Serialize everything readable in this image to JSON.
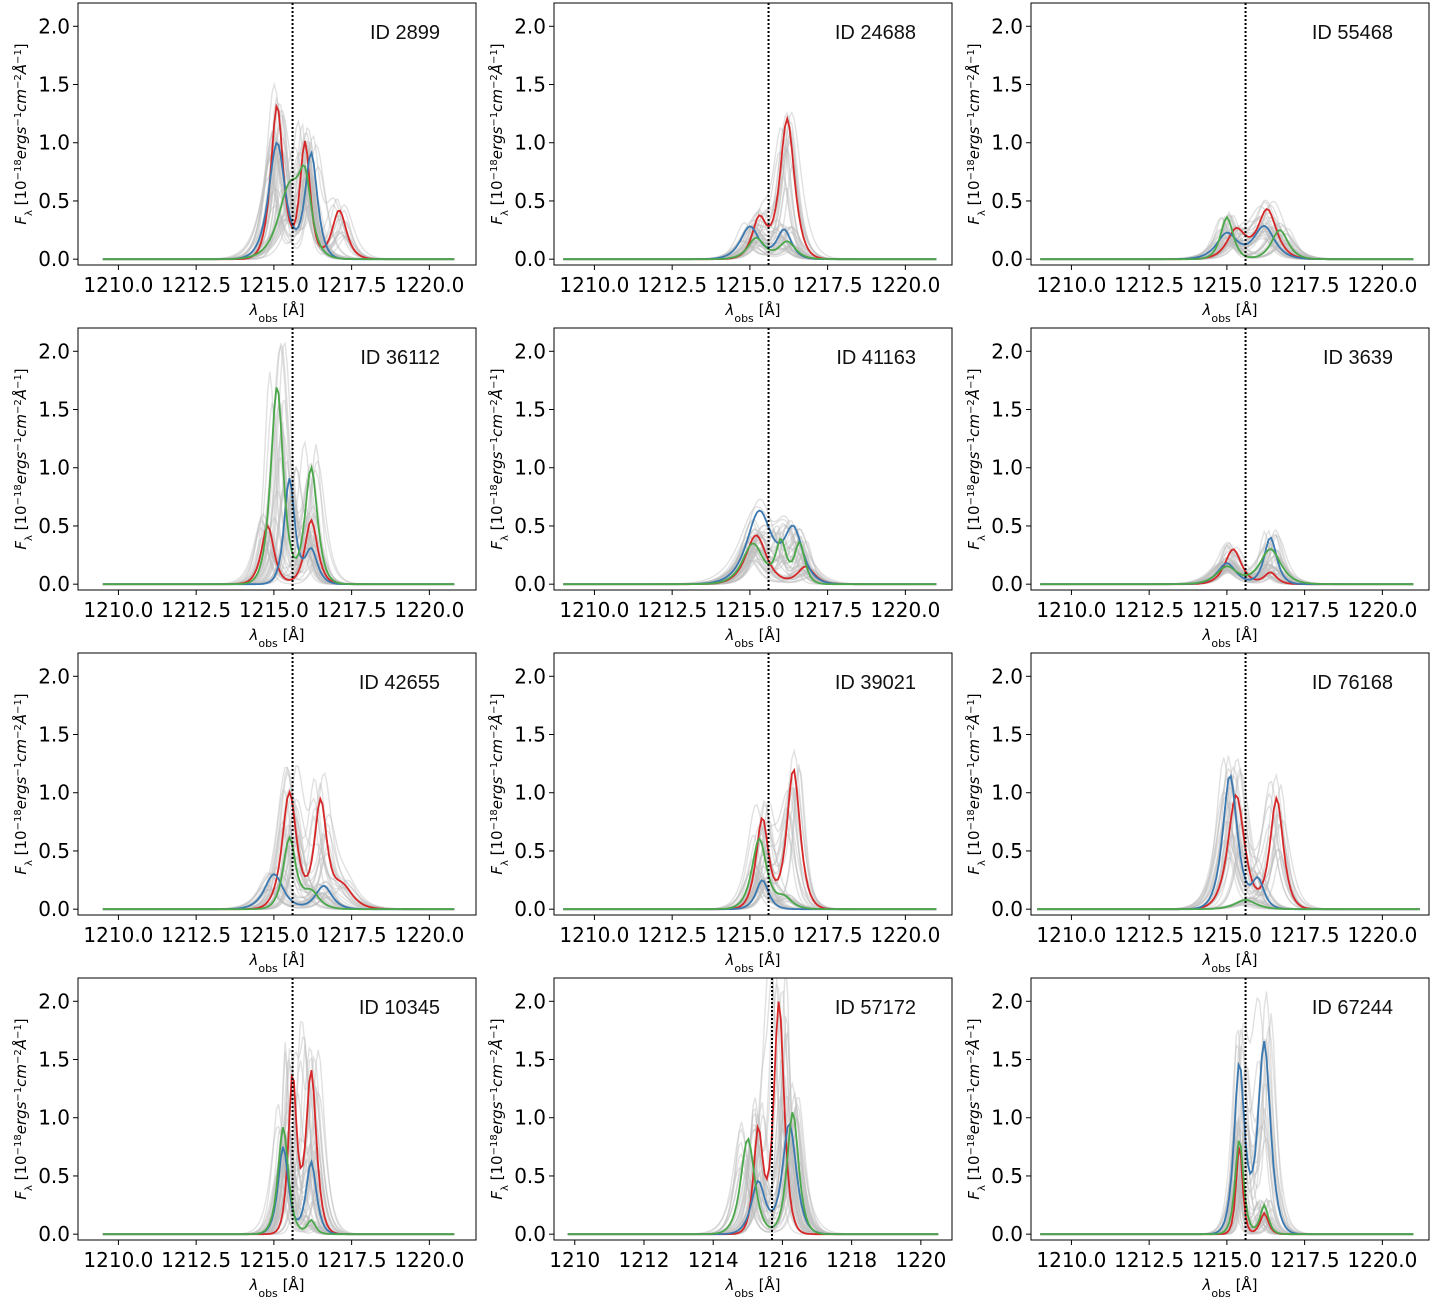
{
  "colors": {
    "red": "#d62728",
    "blue": "#3a78b0",
    "green": "#4aa84a",
    "gray": "#bdbdbd",
    "refline": "#000000"
  },
  "xlabel": "λ_obs [Å]",
  "ylabel": "F_λ [10^-18 ergs^-1 cm^-2 Å^-1]",
  "chart_data": [
    {
      "type": "line",
      "title": "ID 2899",
      "xlim": [
        1208.7,
        1221.5
      ],
      "ylim": [
        -0.05,
        2.2
      ],
      "xticks": [
        1210.0,
        1212.5,
        1215.0,
        1217.5,
        1220.0
      ],
      "xtick_labels": [
        "1210.0",
        "1212.5",
        "1215.0",
        "1217.5",
        "1220.0"
      ],
      "yticks": [
        0.0,
        0.5,
        1.0,
        1.5,
        2.0
      ],
      "ytick_labels": [
        "0.0",
        "0.5",
        "1.0",
        "1.5",
        "2.0"
      ],
      "ref_line_x": 1215.6,
      "x_range": [
        1209.5,
        1220.8
      ],
      "gray_count": 40,
      "series": [
        {
          "name": "red",
          "peaks": [
            [
              1215.1,
              1.32,
              0.3
            ],
            [
              1216.0,
              1.0,
              0.25
            ],
            [
              1217.1,
              0.42,
              0.35
            ]
          ]
        },
        {
          "name": "blue",
          "peaks": [
            [
              1215.1,
              1.0,
              0.4
            ],
            [
              1216.2,
              0.9,
              0.3
            ]
          ]
        },
        {
          "name": "green",
          "peaks": [
            [
              1215.5,
              0.6,
              0.55
            ],
            [
              1216.0,
              0.55,
              0.3
            ]
          ]
        }
      ]
    },
    {
      "type": "line",
      "title": "ID 24688",
      "xlim": [
        1208.7,
        1221.5
      ],
      "ylim": [
        -0.05,
        2.2
      ],
      "xticks": [
        1210.0,
        1212.5,
        1215.0,
        1217.5,
        1220.0
      ],
      "xtick_labels": [
        "1210.0",
        "1212.5",
        "1215.0",
        "1217.5",
        "1220.0"
      ],
      "yticks": [
        0.0,
        0.5,
        1.0,
        1.5,
        2.0
      ],
      "ytick_labels": [
        "0.0",
        "0.5",
        "1.0",
        "1.5",
        "2.0"
      ],
      "ref_line_x": 1215.6,
      "x_range": [
        1209.0,
        1221.0
      ],
      "gray_count": 40,
      "series": [
        {
          "name": "red",
          "peaks": [
            [
              1215.3,
              0.35,
              0.35
            ],
            [
              1216.2,
              1.2,
              0.35
            ]
          ]
        },
        {
          "name": "blue",
          "peaks": [
            [
              1215.0,
              0.28,
              0.45
            ],
            [
              1216.1,
              0.25,
              0.35
            ]
          ]
        },
        {
          "name": "green",
          "peaks": [
            [
              1215.2,
              0.18,
              0.4
            ],
            [
              1216.2,
              0.15,
              0.4
            ]
          ]
        }
      ]
    },
    {
      "type": "line",
      "title": "ID 55468",
      "xlim": [
        1208.7,
        1221.5
      ],
      "ylim": [
        -0.05,
        2.2
      ],
      "xticks": [
        1210.0,
        1212.5,
        1215.0,
        1217.5,
        1220.0
      ],
      "xtick_labels": [
        "1210.0",
        "1212.5",
        "1215.0",
        "1217.5",
        "1220.0"
      ],
      "yticks": [
        0.0,
        0.5,
        1.0,
        1.5,
        2.0
      ],
      "ytick_labels": [
        "0.0",
        "0.5",
        "1.0",
        "1.5",
        "2.0"
      ],
      "ref_line_x": 1215.6,
      "x_range": [
        1209.0,
        1221.0
      ],
      "gray_count": 40,
      "series": [
        {
          "name": "red",
          "peaks": [
            [
              1215.3,
              0.25,
              0.45
            ],
            [
              1216.3,
              0.42,
              0.45
            ]
          ]
        },
        {
          "name": "blue",
          "peaks": [
            [
              1215.0,
              0.22,
              0.5
            ],
            [
              1216.2,
              0.28,
              0.5
            ]
          ]
        },
        {
          "name": "green",
          "peaks": [
            [
              1215.0,
              0.36,
              0.3
            ],
            [
              1216.7,
              0.25,
              0.4
            ]
          ]
        }
      ]
    },
    {
      "type": "line",
      "title": "ID 36112",
      "xlim": [
        1208.7,
        1221.5
      ],
      "ylim": [
        -0.05,
        2.2
      ],
      "xticks": [
        1210.0,
        1212.5,
        1215.0,
        1217.5,
        1220.0
      ],
      "xtick_labels": [
        "1210.0",
        "1212.5",
        "1215.0",
        "1217.5",
        "1220.0"
      ],
      "yticks": [
        0.0,
        0.5,
        1.0,
        1.5,
        2.0
      ],
      "ytick_labels": [
        "0.0",
        "0.5",
        "1.0",
        "1.5",
        "2.0"
      ],
      "ref_line_x": 1215.6,
      "x_range": [
        1209.5,
        1220.8
      ],
      "gray_count": 40,
      "series": [
        {
          "name": "red",
          "peaks": [
            [
              1214.8,
              0.5,
              0.3
            ],
            [
              1216.2,
              0.55,
              0.3
            ]
          ]
        },
        {
          "name": "blue",
          "peaks": [
            [
              1215.5,
              0.9,
              0.25
            ],
            [
              1216.2,
              0.3,
              0.3
            ]
          ]
        },
        {
          "name": "green",
          "peaks": [
            [
              1215.1,
              1.7,
              0.3
            ],
            [
              1216.2,
              1.0,
              0.3
            ]
          ]
        }
      ]
    },
    {
      "type": "line",
      "title": "ID 41163",
      "xlim": [
        1208.7,
        1221.5
      ],
      "ylim": [
        -0.05,
        2.2
      ],
      "xticks": [
        1210.0,
        1212.5,
        1215.0,
        1217.5,
        1220.0
      ],
      "xtick_labels": [
        "1210.0",
        "1212.5",
        "1215.0",
        "1217.5",
        "1220.0"
      ],
      "yticks": [
        0.0,
        0.5,
        1.0,
        1.5,
        2.0
      ],
      "ytick_labels": [
        "0.0",
        "0.5",
        "1.0",
        "1.5",
        "2.0"
      ],
      "ref_line_x": 1215.6,
      "x_range": [
        1209.0,
        1221.0
      ],
      "gray_count": 40,
      "series": [
        {
          "name": "red",
          "peaks": [
            [
              1215.2,
              0.42,
              0.5
            ],
            [
              1216.8,
              0.15,
              0.4
            ]
          ]
        },
        {
          "name": "blue",
          "peaks": [
            [
              1215.3,
              0.62,
              0.6
            ],
            [
              1216.4,
              0.45,
              0.45
            ]
          ]
        },
        {
          "name": "green",
          "peaks": [
            [
              1215.1,
              0.35,
              0.5
            ],
            [
              1216.0,
              0.35,
              0.25
            ],
            [
              1216.6,
              0.35,
              0.25
            ]
          ]
        }
      ]
    },
    {
      "type": "line",
      "title": "ID 3639",
      "xlim": [
        1208.7,
        1221.5
      ],
      "ylim": [
        -0.05,
        2.2
      ],
      "xticks": [
        1210.0,
        1212.5,
        1215.0,
        1217.5,
        1220.0
      ],
      "xtick_labels": [
        "1210.0",
        "1212.5",
        "1215.0",
        "1217.5",
        "1220.0"
      ],
      "yticks": [
        0.0,
        0.5,
        1.0,
        1.5,
        2.0
      ],
      "ytick_labels": [
        "0.0",
        "0.5",
        "1.0",
        "1.5",
        "2.0"
      ],
      "ref_line_x": 1215.6,
      "x_range": [
        1209.0,
        1221.0
      ],
      "gray_count": 40,
      "series": [
        {
          "name": "red",
          "peaks": [
            [
              1215.2,
              0.3,
              0.4
            ],
            [
              1216.4,
              0.1,
              0.3
            ]
          ]
        },
        {
          "name": "blue",
          "peaks": [
            [
              1215.0,
              0.18,
              0.45
            ],
            [
              1216.4,
              0.4,
              0.3
            ]
          ]
        },
        {
          "name": "green",
          "peaks": [
            [
              1215.0,
              0.15,
              0.5
            ],
            [
              1216.4,
              0.3,
              0.5
            ]
          ]
        }
      ]
    },
    {
      "type": "line",
      "title": "ID 42655",
      "xlim": [
        1208.7,
        1221.5
      ],
      "ylim": [
        -0.05,
        2.2
      ],
      "xticks": [
        1210.0,
        1212.5,
        1215.0,
        1217.5,
        1220.0
      ],
      "xtick_labels": [
        "1210.0",
        "1212.5",
        "1215.0",
        "1217.5",
        "1220.0"
      ],
      "yticks": [
        0.0,
        0.5,
        1.0,
        1.5,
        2.0
      ],
      "ytick_labels": [
        "0.0",
        "0.5",
        "1.0",
        "1.5",
        "2.0"
      ],
      "ref_line_x": 1215.6,
      "x_range": [
        1209.5,
        1220.8
      ],
      "gray_count": 40,
      "series": [
        {
          "name": "red",
          "peaks": [
            [
              1215.5,
              1.0,
              0.35
            ],
            [
              1216.5,
              0.9,
              0.3
            ],
            [
              1217.2,
              0.2,
              0.5
            ]
          ]
        },
        {
          "name": "blue",
          "peaks": [
            [
              1215.0,
              0.3,
              0.45
            ],
            [
              1216.6,
              0.2,
              0.4
            ]
          ]
        },
        {
          "name": "green",
          "peaks": [
            [
              1215.5,
              0.6,
              0.3
            ],
            [
              1216.2,
              0.15,
              0.4
            ]
          ]
        }
      ]
    },
    {
      "type": "line",
      "title": "ID 39021",
      "xlim": [
        1208.7,
        1221.5
      ],
      "ylim": [
        -0.05,
        2.2
      ],
      "xticks": [
        1210.0,
        1212.5,
        1215.0,
        1217.5,
        1220.0
      ],
      "xtick_labels": [
        "1210.0",
        "1212.5",
        "1215.0",
        "1217.5",
        "1220.0"
      ],
      "yticks": [
        0.0,
        0.5,
        1.0,
        1.5,
        2.0
      ],
      "ytick_labels": [
        "0.0",
        "0.5",
        "1.0",
        "1.5",
        "2.0"
      ],
      "ref_line_x": 1215.6,
      "x_range": [
        1209.0,
        1221.0
      ],
      "gray_count": 40,
      "series": [
        {
          "name": "red",
          "peaks": [
            [
              1215.4,
              0.78,
              0.3
            ],
            [
              1216.4,
              1.2,
              0.32
            ]
          ]
        },
        {
          "name": "blue",
          "peaks": [
            [
              1215.4,
              0.25,
              0.3
            ]
          ]
        },
        {
          "name": "green",
          "peaks": [
            [
              1215.3,
              0.6,
              0.35
            ],
            [
              1216.1,
              0.1,
              0.4
            ]
          ]
        }
      ]
    },
    {
      "type": "line",
      "title": "ID 76168",
      "xlim": [
        1208.7,
        1221.5
      ],
      "ylim": [
        -0.05,
        2.2
      ],
      "xticks": [
        1210.0,
        1212.5,
        1215.0,
        1217.5,
        1220.0
      ],
      "xtick_labels": [
        "1210.0",
        "1212.5",
        "1215.0",
        "1217.5",
        "1220.0"
      ],
      "yticks": [
        0.0,
        0.5,
        1.0,
        1.5,
        2.0
      ],
      "ytick_labels": [
        "0.0",
        "0.5",
        "1.0",
        "1.5",
        "2.0"
      ],
      "ref_line_x": 1215.6,
      "x_range": [
        1208.9,
        1221.2
      ],
      "gray_count": 40,
      "series": [
        {
          "name": "red",
          "peaks": [
            [
              1215.3,
              0.98,
              0.4
            ],
            [
              1216.6,
              0.95,
              0.32
            ]
          ]
        },
        {
          "name": "blue",
          "peaks": [
            [
              1215.1,
              1.15,
              0.35
            ],
            [
              1216.0,
              0.25,
              0.3
            ]
          ]
        },
        {
          "name": "green",
          "peaks": [
            [
              1215.6,
              0.08,
              0.5
            ]
          ]
        }
      ]
    },
    {
      "type": "line",
      "title": "ID 10345",
      "xlim": [
        1208.7,
        1221.5
      ],
      "ylim": [
        -0.05,
        2.2
      ],
      "xticks": [
        1210.0,
        1212.5,
        1215.0,
        1217.5,
        1220.0
      ],
      "xtick_labels": [
        "1210.0",
        "1212.5",
        "1215.0",
        "1217.5",
        "1220.0"
      ],
      "yticks": [
        0.0,
        0.5,
        1.0,
        1.5,
        2.0
      ],
      "ytick_labels": [
        "0.0",
        "0.5",
        "1.0",
        "1.5",
        "2.0"
      ],
      "ref_line_x": 1215.6,
      "x_range": [
        1209.5,
        1220.8
      ],
      "gray_count": 40,
      "series": [
        {
          "name": "red",
          "peaks": [
            [
              1215.6,
              1.35,
              0.2
            ],
            [
              1216.2,
              1.4,
              0.25
            ]
          ]
        },
        {
          "name": "blue",
          "peaks": [
            [
              1215.3,
              0.75,
              0.25
            ],
            [
              1216.2,
              0.62,
              0.25
            ]
          ]
        },
        {
          "name": "green",
          "peaks": [
            [
              1215.3,
              0.92,
              0.25
            ],
            [
              1216.2,
              0.12,
              0.2
            ]
          ]
        }
      ]
    },
    {
      "type": "line",
      "title": "ID 57172",
      "xlim": [
        1209.4,
        1220.9
      ],
      "ylim": [
        -0.05,
        2.2
      ],
      "xticks": [
        1210,
        1212,
        1214,
        1216,
        1218,
        1220
      ],
      "xtick_labels": [
        "1210",
        "1212",
        "1214",
        "1216",
        "1218",
        "1220"
      ],
      "yticks": [
        0.0,
        0.5,
        1.0,
        1.5,
        2.0
      ],
      "ytick_labels": [
        "0.0",
        "0.5",
        "1.0",
        "1.5",
        "2.0"
      ],
      "ref_line_x": 1215.7,
      "x_range": [
        1209.8,
        1220.5
      ],
      "gray_count": 40,
      "series": [
        {
          "name": "red",
          "peaks": [
            [
              1215.3,
              0.9,
              0.2
            ],
            [
              1215.9,
              2.0,
              0.22
            ]
          ]
        },
        {
          "name": "blue",
          "peaks": [
            [
              1215.3,
              0.45,
              0.3
            ],
            [
              1216.2,
              0.95,
              0.3
            ]
          ]
        },
        {
          "name": "green",
          "peaks": [
            [
              1215.0,
              0.82,
              0.3
            ],
            [
              1216.3,
              1.05,
              0.25
            ]
          ]
        }
      ]
    },
    {
      "type": "line",
      "title": "ID 67244",
      "xlim": [
        1208.7,
        1221.5
      ],
      "ylim": [
        -0.05,
        2.2
      ],
      "xticks": [
        1210.0,
        1212.5,
        1215.0,
        1217.5,
        1220.0
      ],
      "xtick_labels": [
        "1210.0",
        "1212.5",
        "1215.0",
        "1217.5",
        "1220.0"
      ],
      "yticks": [
        0.0,
        0.5,
        1.0,
        1.5,
        2.0
      ],
      "ytick_labels": [
        "0.0",
        "0.5",
        "1.0",
        "1.5",
        "2.0"
      ],
      "ref_line_x": 1215.6,
      "x_range": [
        1209.0,
        1221.0
      ],
      "gray_count": 40,
      "series": [
        {
          "name": "red",
          "peaks": [
            [
              1215.4,
              0.78,
              0.15
            ],
            [
              1216.2,
              0.18,
              0.2
            ]
          ]
        },
        {
          "name": "blue",
          "peaks": [
            [
              1215.4,
              1.45,
              0.25
            ],
            [
              1216.2,
              1.65,
              0.3
            ]
          ]
        },
        {
          "name": "green",
          "peaks": [
            [
              1215.4,
              0.82,
              0.2
            ],
            [
              1216.2,
              0.25,
              0.2
            ]
          ]
        }
      ]
    }
  ]
}
